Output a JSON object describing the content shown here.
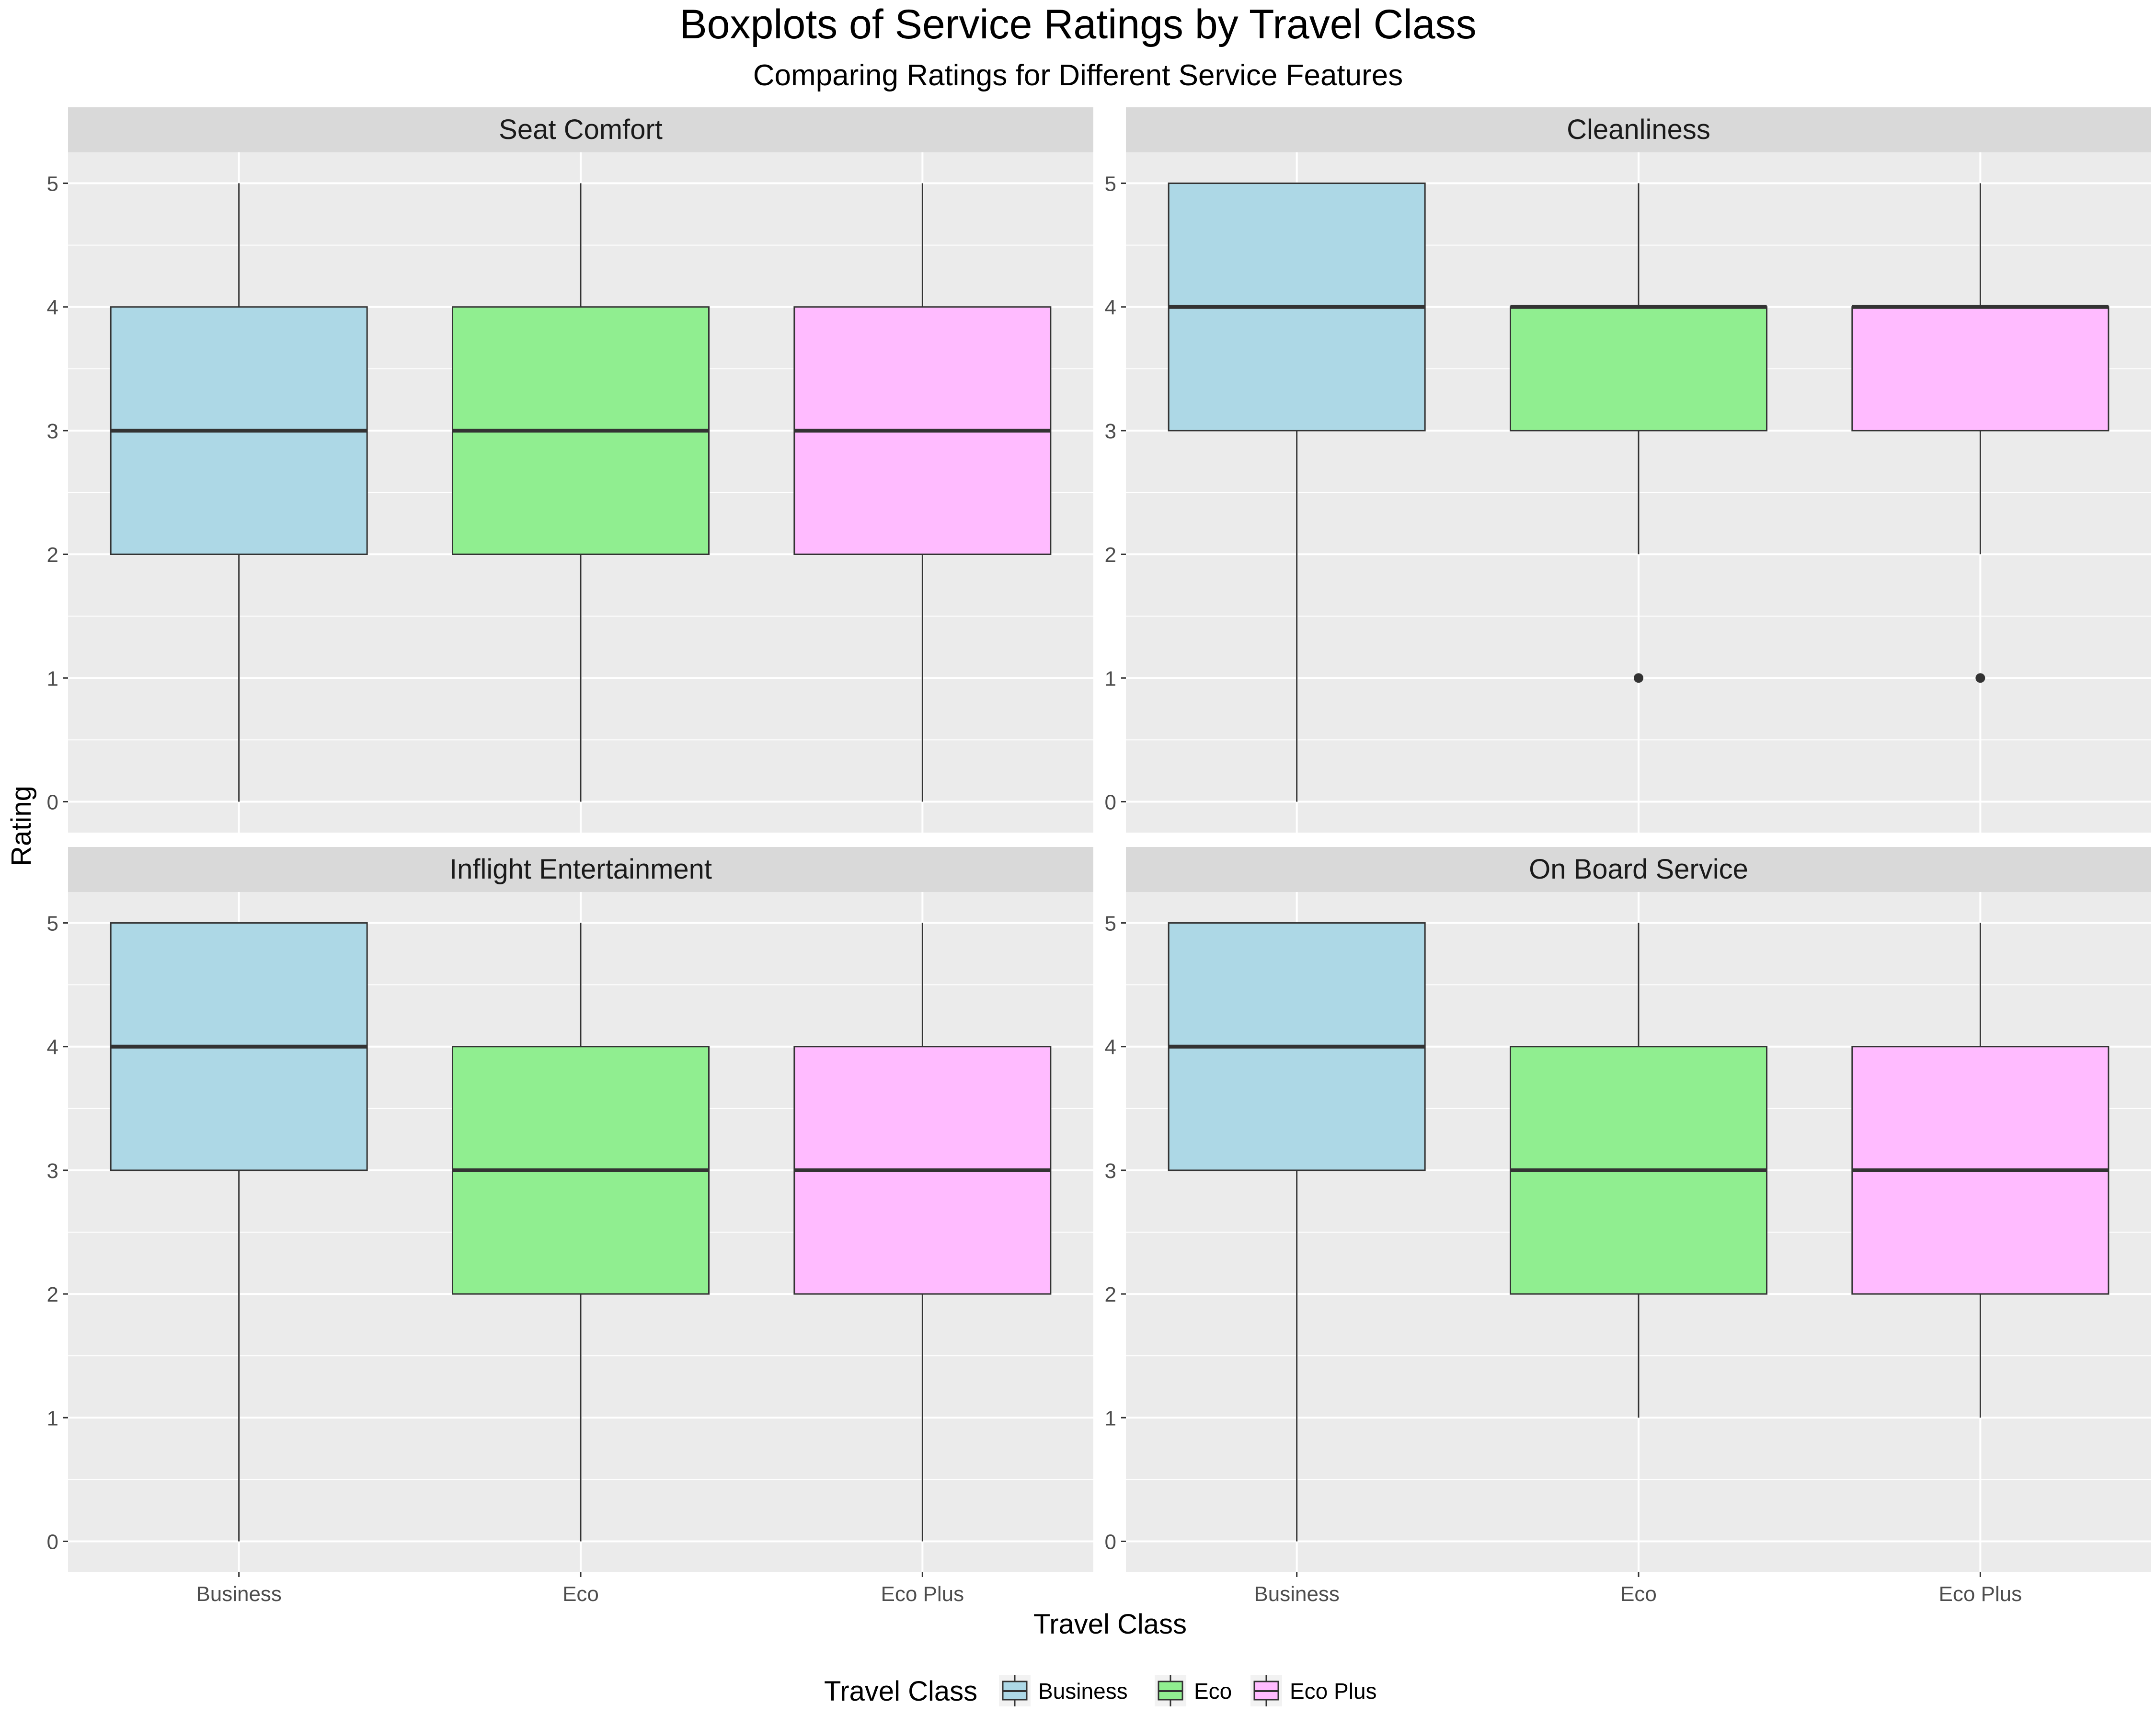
{
  "chart_data": {
    "type": "boxplot",
    "title": "Boxplots of Service Ratings by Travel Class",
    "subtitle": "Comparing Ratings for Different Service Features",
    "xlabel": "Travel Class",
    "ylabel": "Rating",
    "ylim": [
      -0.25,
      5.25
    ],
    "y_ticks": [
      0,
      1,
      2,
      3,
      4,
      5
    ],
    "categories": [
      "Business",
      "Eco",
      "Eco Plus"
    ],
    "grid": true,
    "legend": {
      "title": "Travel Class",
      "position": "bottom",
      "items": [
        {
          "label": "Business",
          "color": "#ADD8E6"
        },
        {
          "label": "Eco",
          "color": "#90EE90"
        },
        {
          "label": "Eco Plus",
          "color": "#FFBBFF"
        }
      ]
    },
    "panels": [
      {
        "title": "Seat Comfort",
        "boxes": [
          {
            "category": "Business",
            "min": 0,
            "q1": 2,
            "median": 3,
            "q3": 4,
            "max": 5,
            "outliers": []
          },
          {
            "category": "Eco",
            "min": 0,
            "q1": 2,
            "median": 3,
            "q3": 4,
            "max": 5,
            "outliers": []
          },
          {
            "category": "Eco Plus",
            "min": 0,
            "q1": 2,
            "median": 3,
            "q3": 4,
            "max": 5,
            "outliers": []
          }
        ]
      },
      {
        "title": "Cleanliness",
        "boxes": [
          {
            "category": "Business",
            "min": 0,
            "q1": 3,
            "median": 4,
            "q3": 5,
            "max": 5,
            "outliers": []
          },
          {
            "category": "Eco",
            "min": 2,
            "q1": 3,
            "median": 4,
            "q3": 4,
            "max": 5,
            "outliers": [
              1
            ]
          },
          {
            "category": "Eco Plus",
            "min": 2,
            "q1": 3,
            "median": 4,
            "q3": 4,
            "max": 5,
            "outliers": [
              1
            ]
          }
        ]
      },
      {
        "title": "Inflight Entertainment",
        "boxes": [
          {
            "category": "Business",
            "min": 0,
            "q1": 3,
            "median": 4,
            "q3": 5,
            "max": 5,
            "outliers": []
          },
          {
            "category": "Eco",
            "min": 0,
            "q1": 2,
            "median": 3,
            "q3": 4,
            "max": 5,
            "outliers": []
          },
          {
            "category": "Eco Plus",
            "min": 0,
            "q1": 2,
            "median": 3,
            "q3": 4,
            "max": 5,
            "outliers": []
          }
        ]
      },
      {
        "title": "On Board Service",
        "boxes": [
          {
            "category": "Business",
            "min": 0,
            "q1": 3,
            "median": 4,
            "q3": 5,
            "max": 5,
            "outliers": []
          },
          {
            "category": "Eco",
            "min": 1,
            "q1": 2,
            "median": 3,
            "q3": 4,
            "max": 5,
            "outliers": []
          },
          {
            "category": "Eco Plus",
            "min": 1,
            "q1": 2,
            "median": 3,
            "q3": 4,
            "max": 5,
            "outliers": []
          }
        ]
      }
    ]
  }
}
